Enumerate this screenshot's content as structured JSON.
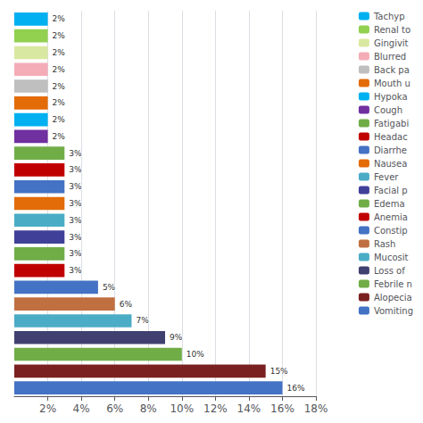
{
  "chart_data": {
    "type": "bar",
    "orientation": "horizontal",
    "categories": [
      "Tachyp",
      "Renal to",
      "Gingivit",
      "Blurred",
      "Back pa",
      "Mouth u",
      "Hypoka",
      "Cough",
      "Fatigabi",
      "Headac",
      "Diarrhe",
      "Nausea",
      "Fever",
      "Facial p",
      "Edema",
      "Anemia",
      "Constip",
      "Rash",
      "Mucosit",
      "Loss of",
      "Febrile n",
      "Alopecia",
      "Vomiting"
    ],
    "values": [
      2,
      2,
      2,
      2,
      2,
      2,
      2,
      2,
      3,
      3,
      3,
      3,
      3,
      3,
      3,
      3,
      5,
      6,
      7,
      9,
      10,
      15,
      16
    ],
    "value_labels": [
      "2%",
      "2%",
      "2%",
      "2%",
      "2%",
      "2%",
      "2%",
      "2%",
      "3%",
      "3%",
      "3%",
      "3%",
      "3%",
      "3%",
      "3%",
      "3%",
      "5%",
      "6%",
      "7%",
      "9%",
      "10%",
      "15%",
      "16%"
    ],
    "colors": [
      "#00b0f0",
      "#92d050",
      "#d9e8a0",
      "#f4acb7",
      "#bfbfbf",
      "#e36c09",
      "#00b0f0",
      "#7030a0",
      "#70ad47",
      "#c00000",
      "#4472c4",
      "#e36c09",
      "#4bacc6",
      "#404099",
      "#70ad47",
      "#c00000",
      "#4472c4",
      "#c07040",
      "#4bacc6",
      "#404070",
      "#70ad47",
      "#7b2020",
      "#4472c4"
    ],
    "xlim": [
      0,
      18
    ],
    "xticks": [
      {
        "value": 2,
        "label": "2%"
      },
      {
        "value": 4,
        "label": "4%"
      },
      {
        "value": 6,
        "label": "6%"
      },
      {
        "value": 8,
        "label": "8%"
      },
      {
        "value": 10,
        "label": "10%"
      },
      {
        "value": 12,
        "label": "12%"
      },
      {
        "value": 14,
        "label": "14%"
      },
      {
        "value": 16,
        "label": "16%"
      },
      {
        "value": 18,
        "label": "18%"
      }
    ],
    "grid": true,
    "data_labels": true,
    "legend": "upper right",
    "tick_labels": "x"
  }
}
